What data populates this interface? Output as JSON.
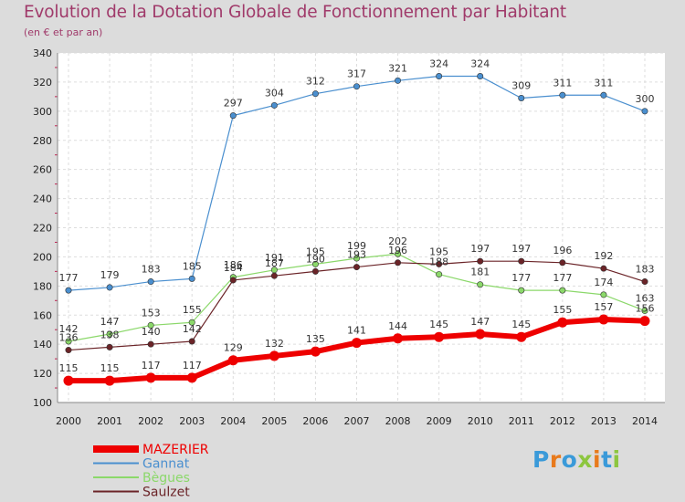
{
  "title": "Evolution de la Dotation Globale de Fonctionnement par Habitant",
  "subtitle": "(en € et par an)",
  "logo": {
    "text": "Proxiti",
    "colors": [
      "#3a9ad9",
      "#e87a1c",
      "#3a9ad9",
      "#8dc63f",
      "#e87a1c",
      "#3a9ad9",
      "#8dc63f"
    ]
  },
  "chart_data": {
    "type": "line",
    "x": [
      2000,
      2001,
      2002,
      2003,
      2004,
      2005,
      2006,
      2007,
      2008,
      2009,
      2010,
      2011,
      2012,
      2013,
      2014
    ],
    "ylim": [
      100,
      340
    ],
    "yticks": [
      100,
      120,
      140,
      160,
      180,
      200,
      220,
      240,
      260,
      280,
      300,
      320,
      340
    ],
    "grid": true,
    "legend_position": "bottom-left",
    "series": [
      {
        "name": "Gannat",
        "color": "#4a8fcf",
        "values": [
          177,
          179,
          183,
          185,
          297,
          304,
          312,
          317,
          321,
          324,
          324,
          309,
          311,
          311,
          300
        ]
      },
      {
        "name": "Bègues",
        "color": "#8bd86a",
        "values": [
          142,
          147,
          153,
          155,
          186,
          191,
          195,
          199,
          202,
          188,
          181,
          177,
          177,
          174,
          163
        ]
      },
      {
        "name": "Saulzet",
        "color": "#6b2428",
        "values": [
          136,
          138,
          140,
          142,
          184,
          187,
          190,
          193,
          196,
          195,
          197,
          197,
          196,
          192,
          183
        ]
      },
      {
        "name": "MAZERIER",
        "color": "#ee0000",
        "values": [
          115,
          115,
          117,
          117,
          129,
          132,
          135,
          141,
          144,
          145,
          147,
          145,
          155,
          157,
          156
        ]
      }
    ],
    "legend_order": [
      "MAZERIER",
      "Gannat",
      "Bègues",
      "Saulzet"
    ]
  }
}
